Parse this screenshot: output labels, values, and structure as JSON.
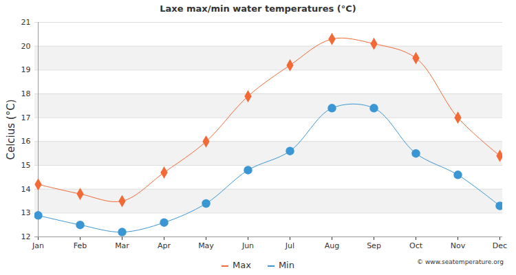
{
  "chart_data": {
    "type": "line",
    "title": "Laxe max/min water temperatures (°C)",
    "y_label": "Celcius (°C)",
    "caption": "© www.seatemperature.org",
    "categories": [
      "Jan",
      "Feb",
      "Mar",
      "Apr",
      "May",
      "Jun",
      "Jul",
      "Aug",
      "Sep",
      "Oct",
      "Nov",
      "Dec"
    ],
    "series": [
      {
        "name": "Max",
        "color": "#f26a36",
        "marker": "diamond",
        "values": [
          14.2,
          13.8,
          13.5,
          14.7,
          16.0,
          17.9,
          19.2,
          20.3,
          20.1,
          19.5,
          17.0,
          15.4
        ]
      },
      {
        "name": "Min",
        "color": "#3b97d3",
        "marker": "circle",
        "values": [
          12.9,
          12.5,
          12.2,
          12.6,
          13.4,
          14.8,
          15.6,
          17.4,
          17.4,
          15.5,
          14.6,
          13.3
        ]
      }
    ],
    "ylim": [
      12,
      21
    ],
    "yticks": [
      12,
      13,
      14,
      15,
      16,
      17,
      18,
      19,
      20,
      21
    ],
    "grid": true,
    "legend": "bottom"
  }
}
